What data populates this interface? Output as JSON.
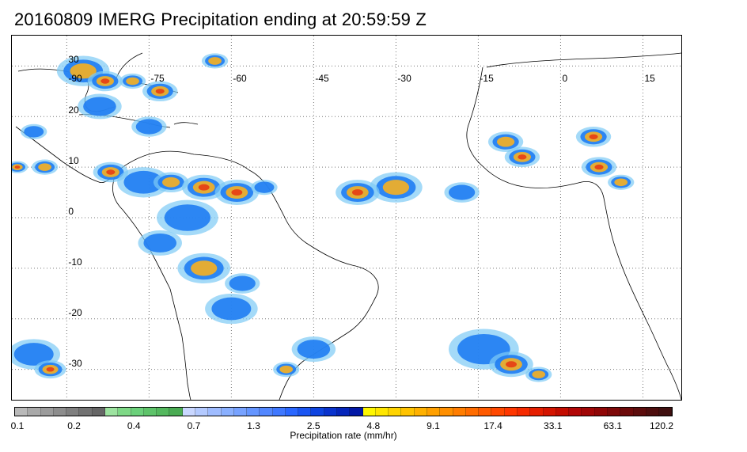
{
  "title": "20160809 IMERG Precipitation ending at 20:59:59 Z",
  "map": {
    "lon_range": [
      -100,
      22
    ],
    "lat_range": [
      -36,
      36
    ],
    "lon_ticks": [
      {
        "value": -90,
        "label": "-90"
      },
      {
        "value": -75,
        "label": "-75"
      },
      {
        "value": -60,
        "label": "-60"
      },
      {
        "value": -45,
        "label": "-45"
      },
      {
        "value": -30,
        "label": "-30"
      },
      {
        "value": -15,
        "label": "-15"
      },
      {
        "value": 0,
        "label": "0"
      },
      {
        "value": 15,
        "label": "15"
      }
    ],
    "lat_ticks": [
      {
        "value": 30,
        "label": "30"
      },
      {
        "value": 20,
        "label": "20"
      },
      {
        "value": 10,
        "label": "10"
      },
      {
        "value": 0,
        "label": "0"
      },
      {
        "value": -10,
        "label": "-10"
      },
      {
        "value": -20,
        "label": "-20"
      },
      {
        "value": -30,
        "label": "-30"
      }
    ],
    "grid": true,
    "precip_cells": [
      {
        "lon": -87,
        "lat": 29,
        "r": 3.0,
        "level": 2
      },
      {
        "lon": -83,
        "lat": 27,
        "r": 2.0,
        "level": 3
      },
      {
        "lon": -78,
        "lat": 27,
        "r": 1.5,
        "level": 2
      },
      {
        "lon": -73,
        "lat": 25,
        "r": 2.0,
        "level": 3
      },
      {
        "lon": -63,
        "lat": 31,
        "r": 1.5,
        "level": 2
      },
      {
        "lon": -84,
        "lat": 22,
        "r": 2.5,
        "level": 1
      },
      {
        "lon": -75,
        "lat": 18,
        "r": 2.0,
        "level": 1
      },
      {
        "lon": -96,
        "lat": 17,
        "r": 1.5,
        "level": 1
      },
      {
        "lon": -99,
        "lat": 10,
        "r": 1.2,
        "level": 3
      },
      {
        "lon": -94,
        "lat": 10,
        "r": 1.5,
        "level": 2
      },
      {
        "lon": -82,
        "lat": 9,
        "r": 2.0,
        "level": 3
      },
      {
        "lon": -76,
        "lat": 7,
        "r": 3.0,
        "level": 1
      },
      {
        "lon": -71,
        "lat": 7,
        "r": 2.0,
        "level": 2
      },
      {
        "lon": -65,
        "lat": 6,
        "r": 2.5,
        "level": 3
      },
      {
        "lon": -59,
        "lat": 5,
        "r": 2.5,
        "level": 3
      },
      {
        "lon": -54,
        "lat": 6,
        "r": 1.5,
        "level": 1
      },
      {
        "lon": -68,
        "lat": 0,
        "r": 3.5,
        "level": 1
      },
      {
        "lon": -73,
        "lat": -5,
        "r": 2.5,
        "level": 1
      },
      {
        "lon": -65,
        "lat": -10,
        "r": 3.0,
        "level": 2
      },
      {
        "lon": -58,
        "lat": -13,
        "r": 2.0,
        "level": 1
      },
      {
        "lon": -60,
        "lat": -18,
        "r": 3.0,
        "level": 1
      },
      {
        "lon": -45,
        "lat": -26,
        "r": 2.5,
        "level": 1
      },
      {
        "lon": -50,
        "lat": -30,
        "r": 1.5,
        "level": 2
      },
      {
        "lon": -30,
        "lat": 6,
        "r": 3.0,
        "level": 2
      },
      {
        "lon": -37,
        "lat": 5,
        "r": 2.5,
        "level": 3
      },
      {
        "lon": -18,
        "lat": 5,
        "r": 2.0,
        "level": 1
      },
      {
        "lon": -10,
        "lat": 15,
        "r": 2.0,
        "level": 2
      },
      {
        "lon": -7,
        "lat": 12,
        "r": 2.0,
        "level": 3
      },
      {
        "lon": 6,
        "lat": 16,
        "r": 2.0,
        "level": 3
      },
      {
        "lon": 7,
        "lat": 10,
        "r": 2.0,
        "level": 3
      },
      {
        "lon": 11,
        "lat": 7,
        "r": 1.5,
        "level": 2
      },
      {
        "lon": -96,
        "lat": -27,
        "r": 3.0,
        "level": 1
      },
      {
        "lon": -93,
        "lat": -30,
        "r": 1.8,
        "level": 3
      },
      {
        "lon": -14,
        "lat": -26,
        "r": 4.0,
        "level": 1
      },
      {
        "lon": -9,
        "lat": -29,
        "r": 2.5,
        "level": 3
      },
      {
        "lon": -4,
        "lat": -31,
        "r": 1.5,
        "level": 2
      }
    ],
    "level_colors": [
      "#7ecbf5",
      "#1f7cf2",
      "#f7b020",
      "#e63c14"
    ]
  },
  "colorbar": {
    "colors": [
      "#b9b9b9",
      "#a9a9a9",
      "#9b9b9b",
      "#8d8d8d",
      "#7f7f7f",
      "#727272",
      "#666666",
      "#9de3a0",
      "#7ed886",
      "#6bd07a",
      "#5ec36a",
      "#54b85e",
      "#4aab53",
      "#c9d7ff",
      "#b4caff",
      "#9fbcff",
      "#8ab0ff",
      "#77a2ff",
      "#6495ff",
      "#5287ff",
      "#3f78ff",
      "#2a67ff",
      "#1a55f2",
      "#0e44e0",
      "#0933cd",
      "#0525ba",
      "#0218a6",
      "#fff700",
      "#ffe600",
      "#ffd400",
      "#ffc300",
      "#ffb100",
      "#ffa000",
      "#ff8f00",
      "#ff7d00",
      "#ff6c00",
      "#ff5a00",
      "#ff4800",
      "#ff3700",
      "#f52a00",
      "#e51e00",
      "#d41400",
      "#c30c00",
      "#b10606",
      "#a00606",
      "#8f0606",
      "#7d0808",
      "#6c0a0a",
      "#5c0c0c",
      "#4d0e0e",
      "#3f1010"
    ],
    "labels": [
      "0.1",
      "0.2",
      "0.4",
      "0.7",
      "1.3",
      "2.5",
      "4.8",
      "9.1",
      "17.4",
      "33.1",
      "63.1",
      "120.2"
    ],
    "title": "Precipitation rate (mm/hr)"
  }
}
